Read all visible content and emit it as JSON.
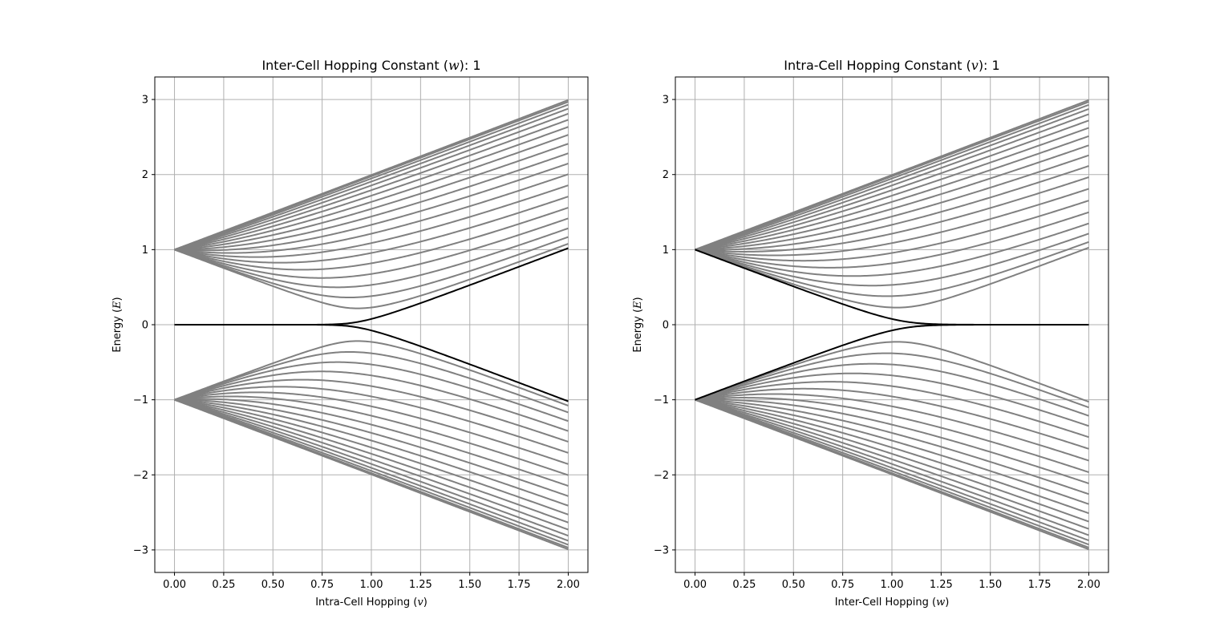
{
  "chart_data": [
    {
      "type": "line",
      "title_prefix": "Inter-Cell Hopping Constant (",
      "title_symbol": "w",
      "title_suffix": "): 1",
      "xlabel_prefix": "Intra-Cell Hopping (",
      "xlabel_symbol": "v",
      "xlabel_suffix": ")",
      "ylabel_prefix": "Energy (",
      "ylabel_symbol": "E",
      "ylabel_suffix": ")",
      "xlim": [
        -0.1,
        2.1
      ],
      "ylim": [
        -3.3,
        3.3
      ],
      "xticks": [
        "0.00",
        "0.25",
        "0.50",
        "0.75",
        "1.00",
        "1.25",
        "1.50",
        "1.75",
        "2.00"
      ],
      "yticks": [
        "−3",
        "−2",
        "−1",
        "0",
        "1",
        "2",
        "3"
      ],
      "grid": true,
      "model": "SSH chain, 20 unit cells, 40 eigenvalues; sweep variable v, fixed w = 1",
      "sweep": "intra",
      "fixed_hopping": 1,
      "n_cells": 20,
      "x_range": [
        0,
        2
      ],
      "band_color": "#808080",
      "edge_color": "#000000"
    },
    {
      "type": "line",
      "title_prefix": "Intra-Cell Hopping Constant (",
      "title_symbol": "v",
      "title_suffix": "): 1",
      "xlabel_prefix": "Inter-Cell Hopping (",
      "xlabel_symbol": "w",
      "xlabel_suffix": ")",
      "ylabel_prefix": "Energy (",
      "ylabel_symbol": "E",
      "ylabel_suffix": ")",
      "xlim": [
        -0.1,
        2.1
      ],
      "ylim": [
        -3.3,
        3.3
      ],
      "xticks": [
        "0.00",
        "0.25",
        "0.50",
        "0.75",
        "1.00",
        "1.25",
        "1.50",
        "1.75",
        "2.00"
      ],
      "yticks": [
        "−3",
        "−2",
        "−1",
        "0",
        "1",
        "2",
        "3"
      ],
      "grid": true,
      "model": "SSH chain, 20 unit cells, 40 eigenvalues; sweep variable w, fixed v = 1",
      "sweep": "inter",
      "fixed_hopping": 1,
      "n_cells": 20,
      "x_range": [
        0,
        2
      ],
      "band_color": "#808080",
      "edge_color": "#000000"
    }
  ]
}
